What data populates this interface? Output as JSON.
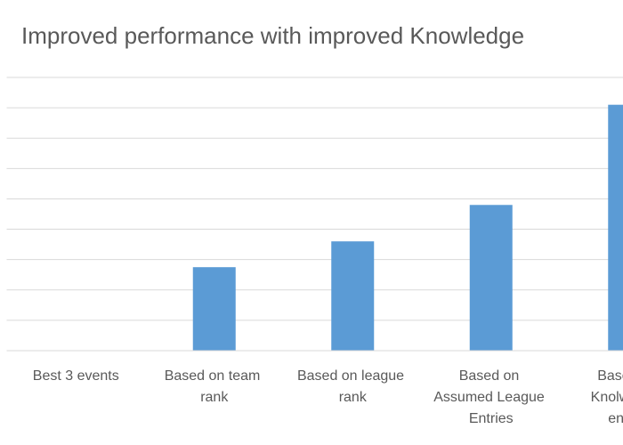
{
  "chart_data": {
    "type": "bar",
    "title": "Improved performance with improved Knowledge",
    "categories": [
      "Best 3 events",
      "Based on team rank",
      "Based on league rank",
      "Based on Assumed League Entries",
      "Based on Knolwledge entries"
    ],
    "values": [
      0,
      2.75,
      3.6,
      4.8,
      8.1
    ],
    "color": "#5b9bd5",
    "ylim": [
      0,
      9
    ],
    "yticks": [
      0,
      1,
      2,
      3,
      4,
      5,
      6,
      7,
      8,
      9
    ],
    "grid": true
  }
}
